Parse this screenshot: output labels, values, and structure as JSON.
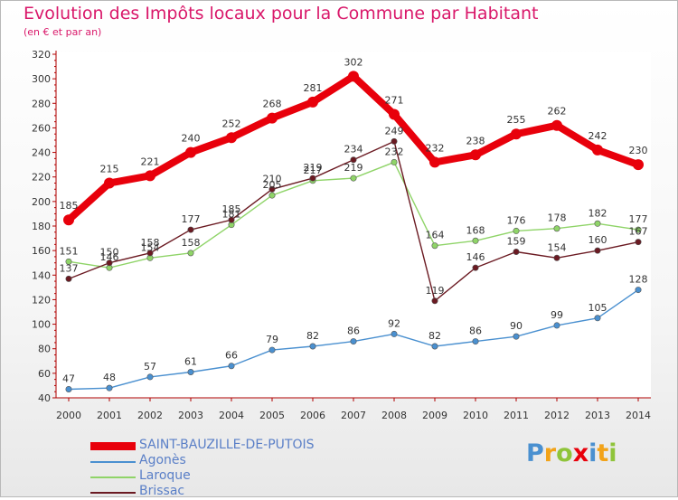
{
  "header": {
    "title": "Evolution des Impôts locaux pour la Commune par Habitant",
    "subtitle": "(en € et par an)"
  },
  "chart_data": {
    "type": "line",
    "title": "Evolution des Impôts locaux pour la Commune par Habitant",
    "subtitle": "(en € et par an)",
    "categories": [
      "2000",
      "2001",
      "2002",
      "2003",
      "2004",
      "2005",
      "2006",
      "2007",
      "2008",
      "2009",
      "2010",
      "2011",
      "2012",
      "2013",
      "2014"
    ],
    "yticks": [
      40,
      60,
      80,
      100,
      120,
      140,
      160,
      180,
      200,
      220,
      240,
      260,
      280,
      300,
      320
    ],
    "ylim": [
      40,
      320
    ],
    "grid": false,
    "legend_position": "bottom-left",
    "series": [
      {
        "name": "SAINT-BAUZILLE-DE-PUTOIS",
        "color": "#e8000b",
        "values": [
          185,
          215,
          221,
          240,
          252,
          268,
          281,
          302,
          271,
          232,
          238,
          255,
          262,
          242,
          230
        ],
        "labels": [
          "185",
          "215",
          "221",
          "240",
          "252",
          "268",
          "281",
          "302",
          "271",
          "232",
          "238",
          "255",
          "262",
          "242",
          "230"
        ]
      },
      {
        "name": "Agonès",
        "color": "#4a90d0",
        "values": [
          47,
          48,
          57,
          61,
          66,
          79,
          82,
          86,
          92,
          82,
          86,
          90,
          99,
          105,
          128
        ],
        "labels": [
          "47",
          "48",
          "57",
          "61",
          "66",
          "79",
          "82",
          "86",
          "92",
          "82",
          "86",
          "90",
          "99",
          "105",
          "128"
        ]
      },
      {
        "name": "Laroque",
        "color": "#8fd468",
        "values": [
          151,
          146,
          154,
          158,
          181,
          205,
          217,
          219,
          232,
          164,
          168,
          176,
          178,
          182,
          177
        ],
        "labels": [
          "151",
          "146",
          "154",
          "158",
          "181",
          "205",
          "217",
          "219",
          "232",
          "164",
          "168",
          "176",
          "178",
          "182",
          "177"
        ]
      },
      {
        "name": "Brissac",
        "color": "#6b1a22",
        "values": [
          137,
          150,
          158,
          177,
          185,
          210,
          219,
          234,
          249,
          119,
          146,
          159,
          154,
          160,
          167
        ],
        "labels": [
          "137",
          "150",
          "158",
          "177",
          "185",
          "210",
          "219",
          "234",
          "249",
          "119",
          "146",
          "159",
          "154",
          "160",
          "167"
        ]
      }
    ]
  },
  "legend": {
    "items": [
      {
        "label": "SAINT-BAUZILLE-DE-PUTOIS",
        "color": "#e8000b"
      },
      {
        "label": "Agonès",
        "color": "#4a90d0"
      },
      {
        "label": "Laroque",
        "color": "#8fd468"
      },
      {
        "label": "Brissac",
        "color": "#6b1a22"
      }
    ]
  },
  "logo": {
    "text": "Proxiti",
    "letters": [
      {
        "ch": "P",
        "color": "#4a90d0"
      },
      {
        "ch": "r",
        "color": "#f2a319"
      },
      {
        "ch": "o",
        "color": "#8fc43a"
      },
      {
        "ch": "x",
        "color": "#e8000b"
      },
      {
        "ch": "i",
        "color": "#4a90d0"
      },
      {
        "ch": "t",
        "color": "#f2a319"
      },
      {
        "ch": "i",
        "color": "#8fc43a"
      }
    ]
  }
}
